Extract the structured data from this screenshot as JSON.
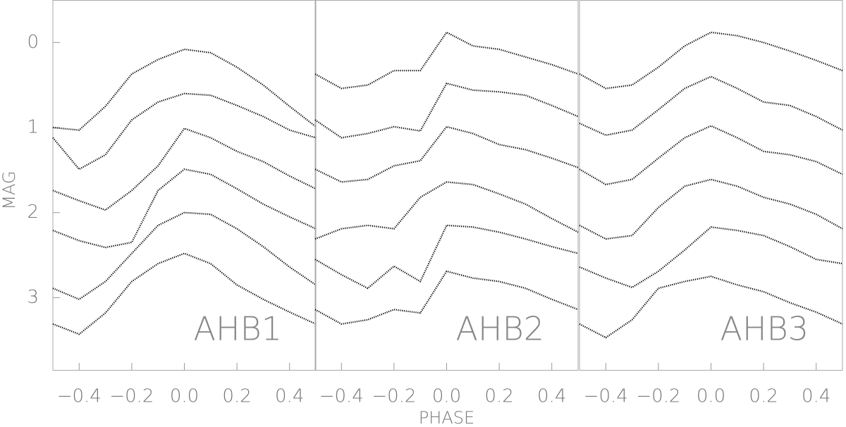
{
  "chart_data": [
    {
      "type": "line",
      "annotation": "AHB1",
      "ylabel": "MAG",
      "x": [
        -0.5,
        -0.4,
        -0.3,
        -0.2,
        -0.1,
        0,
        0.1,
        0.2,
        0.3,
        0.4,
        0.5
      ],
      "xlim": [
        -0.5,
        0.5
      ],
      "ylim": [
        3.85,
        -0.5
      ],
      "xticks": [
        {
          "value": -0.4,
          "label": "−0.4"
        },
        {
          "value": -0.2,
          "label": "−0.2"
        },
        {
          "value": 0,
          "label": "0.0"
        },
        0.2,
        0.4
      ],
      "yticks": [
        0,
        1,
        2,
        3
      ],
      "series": [
        {
          "color": "#000000",
          "values": [
            1.0,
            1.03,
            0.75,
            0.37,
            0.2,
            0.08,
            0.12,
            0.29,
            0.5,
            0.75,
            0.99
          ]
        },
        {
          "color": "#000000",
          "values": [
            1.12,
            1.49,
            1.32,
            0.91,
            0.7,
            0.6,
            0.62,
            0.74,
            0.87,
            1.03,
            1.12
          ]
        },
        {
          "color": "#000000",
          "values": [
            1.74,
            1.86,
            1.97,
            1.74,
            1.45,
            1.01,
            1.12,
            1.28,
            1.4,
            1.57,
            1.72
          ]
        },
        {
          "color": "#000000",
          "values": [
            2.21,
            2.33,
            2.41,
            2.35,
            1.74,
            1.49,
            1.55,
            1.72,
            1.9,
            2.05,
            2.19
          ]
        },
        {
          "color": "#000000",
          "values": [
            2.89,
            3.02,
            2.81,
            2.48,
            2.15,
            2.0,
            2.02,
            2.19,
            2.4,
            2.64,
            2.85
          ]
        },
        {
          "color": "#000000",
          "values": [
            3.31,
            3.43,
            3.18,
            2.81,
            2.6,
            2.48,
            2.6,
            2.85,
            3.02,
            3.17,
            3.31
          ]
        }
      ]
    },
    {
      "type": "line",
      "annotation": "AHB2",
      "xlabel": "PHASE",
      "x": [
        -0.5,
        -0.4,
        -0.3,
        -0.2,
        -0.1,
        0,
        0.1,
        0.2,
        0.3,
        0.4,
        0.5
      ],
      "xlim": [
        -0.5,
        0.5
      ],
      "ylim": [
        3.85,
        -0.5
      ],
      "xticks": [
        {
          "value": -0.4,
          "label": "−0.4"
        },
        {
          "value": -0.2,
          "label": "−0.2"
        },
        {
          "value": 0,
          "label": "0.0"
        },
        0.2,
        0.4
      ],
      "series": [
        {
          "color": "#000000",
          "values": [
            0.37,
            0.54,
            0.5,
            0.33,
            0.33,
            -0.12,
            0.04,
            0.08,
            0.17,
            0.26,
            0.37
          ]
        },
        {
          "color": "#000000",
          "values": [
            0.91,
            1.12,
            1.07,
            0.99,
            1.04,
            0.48,
            0.56,
            0.58,
            0.62,
            0.74,
            0.87
          ]
        },
        {
          "color": "#000000",
          "values": [
            1.49,
            1.64,
            1.61,
            1.45,
            1.39,
            0.99,
            1.07,
            1.2,
            1.26,
            1.36,
            1.47
          ]
        },
        {
          "color": "#000000",
          "values": [
            2.31,
            2.19,
            2.15,
            2.19,
            1.82,
            1.64,
            1.67,
            1.78,
            1.9,
            2.07,
            2.23
          ]
        },
        {
          "color": "#000000",
          "values": [
            2.55,
            2.73,
            2.89,
            2.63,
            2.81,
            2.15,
            2.17,
            2.23,
            2.31,
            2.4,
            2.48
          ]
        },
        {
          "color": "#000000",
          "values": [
            3.14,
            3.31,
            3.26,
            3.14,
            3.18,
            2.69,
            2.77,
            2.81,
            2.89,
            3.02,
            3.14
          ]
        }
      ]
    },
    {
      "type": "line",
      "annotation": "AHB3",
      "x": [
        -0.5,
        -0.4,
        -0.3,
        -0.2,
        -0.1,
        0,
        0.1,
        0.2,
        0.3,
        0.4,
        0.5
      ],
      "xlim": [
        -0.5,
        0.5
      ],
      "ylim": [
        3.85,
        -0.5
      ],
      "xticks": [
        {
          "value": -0.4,
          "label": "−0.4"
        },
        {
          "value": -0.2,
          "label": "−0.2"
        },
        {
          "value": 0,
          "label": "0.0"
        },
        0.2,
        0.4
      ],
      "series": [
        {
          "color": "#000000",
          "values": [
            0.37,
            0.54,
            0.5,
            0.29,
            0.04,
            -0.12,
            -0.08,
            0,
            0.1,
            0.21,
            0.33
          ]
        },
        {
          "color": "#000000",
          "values": [
            0.95,
            1.09,
            1.03,
            0.79,
            0.54,
            0.4,
            0.54,
            0.7,
            0.74,
            0.87,
            1.03
          ]
        },
        {
          "color": "#000000",
          "values": [
            1.49,
            1.67,
            1.61,
            1.36,
            1.12,
            0.98,
            1.12,
            1.28,
            1.32,
            1.4,
            1.55
          ]
        },
        {
          "color": "#000000",
          "values": [
            2.15,
            2.31,
            2.27,
            1.94,
            1.69,
            1.61,
            1.69,
            1.82,
            1.9,
            2.02,
            2.19
          ]
        },
        {
          "color": "#000000",
          "values": [
            2.64,
            2.77,
            2.88,
            2.69,
            2.44,
            2.17,
            2.21,
            2.27,
            2.4,
            2.55,
            2.6
          ]
        },
        {
          "color": "#000000",
          "values": [
            3.31,
            3.47,
            3.26,
            2.89,
            2.81,
            2.75,
            2.85,
            2.93,
            3.06,
            3.17,
            3.31
          ]
        }
      ]
    }
  ]
}
